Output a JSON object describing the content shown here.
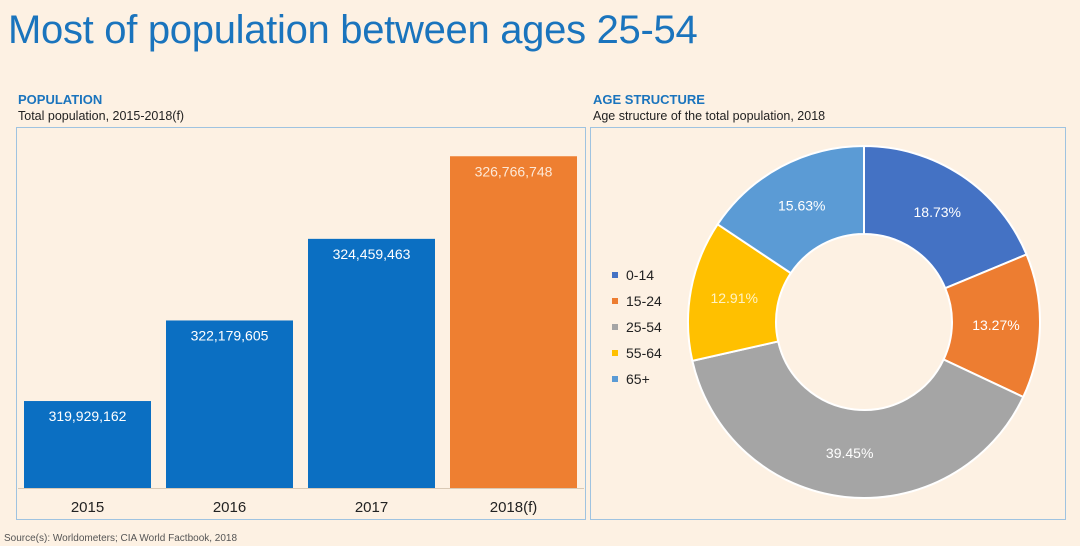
{
  "title": "Most of population between ages 25-54",
  "source": "Source(s): Worldometers; CIA World Factbook, 2018",
  "colors": {
    "accent": "#1a74bd",
    "bar_blue": "#0b6fc2",
    "bar_orange": "#ee7f31",
    "pie": [
      "#4472c4",
      "#ed7d31",
      "#a5a5a5",
      "#ffc000",
      "#5b9bd5"
    ]
  },
  "chart_data": [
    {
      "type": "bar",
      "heading": "POPULATION",
      "title": "Total population, 2015-2018(f)",
      "categories": [
        "2015",
        "2016",
        "2017",
        "2018(f)"
      ],
      "values": [
        319929162,
        322179605,
        324459463,
        326766748
      ],
      "value_labels": [
        "319,929,162",
        "322,179,605",
        "324,459,463",
        "326,766,748"
      ],
      "ylim": [
        317500000,
        327500000
      ],
      "grid": false,
      "highlight_index": 3
    },
    {
      "type": "pie",
      "heading": "AGE STRUCTURE",
      "title": "Age structure of the total population, 2018",
      "donut": true,
      "labels": [
        "0-14",
        "15-24",
        "25-54",
        "55-64",
        "65+"
      ],
      "values": [
        18.73,
        13.27,
        39.45,
        12.91,
        15.63
      ],
      "value_labels": [
        "18.73%",
        "13.27%",
        "39.45%",
        "12.91%",
        "15.63%"
      ],
      "legend_position": "left"
    }
  ]
}
